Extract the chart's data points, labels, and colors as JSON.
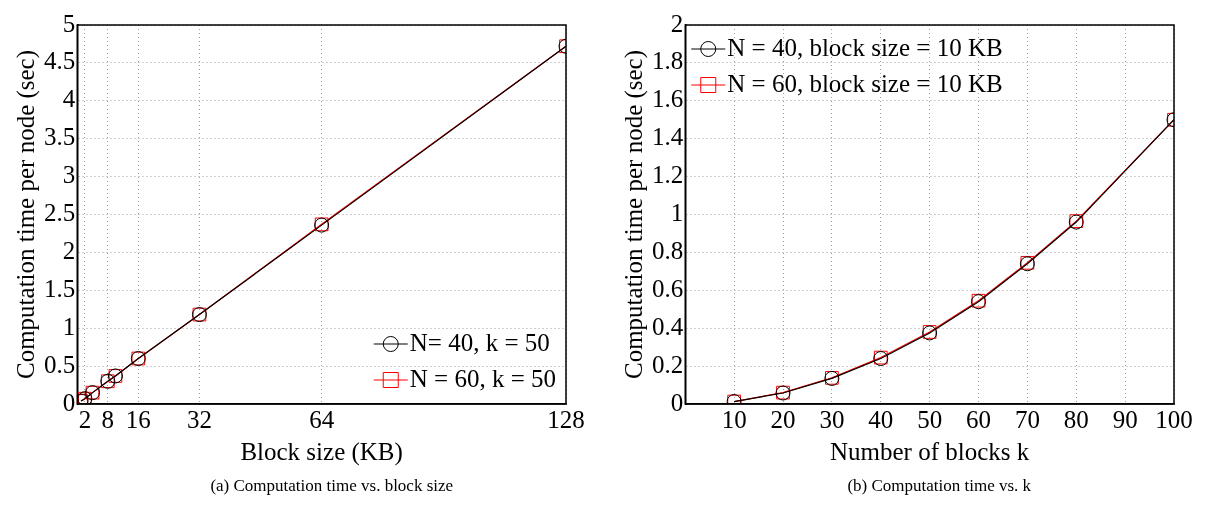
{
  "chart_data": [
    {
      "type": "line",
      "xlabel": "Block size (KB)",
      "ylabel": "Computation time per node (sec)",
      "annotations": [
        "(a) Computation time vs. block size"
      ],
      "x": [
        1,
        2,
        4,
        8,
        10,
        16,
        32,
        64,
        128
      ],
      "xlim": [
        0,
        128
      ],
      "xticks": [
        2,
        8,
        16,
        32,
        64,
        128
      ],
      "ylim": [
        0,
        5
      ],
      "yticks": [
        0,
        0.5,
        1,
        1.5,
        2,
        2.5,
        3,
        3.5,
        4,
        4.5,
        5
      ],
      "grid": true,
      "legend": "bottom right",
      "series": [
        {
          "name": "N= 40, k = 50",
          "color": "#000000",
          "marker": "circle",
          "values": [
            0.04,
            0.07,
            0.15,
            0.3,
            0.37,
            0.6,
            1.18,
            2.36,
            4.72
          ]
        },
        {
          "name": "N = 60, k = 50",
          "color": "#ff0000",
          "marker": "square",
          "values": [
            0.04,
            0.07,
            0.15,
            0.3,
            0.37,
            0.6,
            1.18,
            2.37,
            4.72
          ]
        }
      ]
    },
    {
      "type": "line",
      "xlabel": "Number of blocks k",
      "ylabel": "Computation time per node (sec)",
      "annotations": [
        "(b) Computation time vs. k"
      ],
      "x": [
        10,
        20,
        30,
        40,
        50,
        60,
        70,
        80,
        100
      ],
      "xlim": [
        0,
        100
      ],
      "xticks": [
        10,
        20,
        30,
        40,
        50,
        60,
        70,
        80,
        90,
        100
      ],
      "ylim": [
        0,
        2
      ],
      "yticks": [
        0,
        0.2,
        0.4,
        0.6,
        0.8,
        1,
        1.2,
        1.4,
        1.6,
        1.8,
        2
      ],
      "grid": true,
      "legend": "top left",
      "series": [
        {
          "name": "N = 40, block size = 10 KB",
          "color": "#000000",
          "marker": "circle",
          "values": [
            0.013,
            0.058,
            0.135,
            0.24,
            0.375,
            0.54,
            0.74,
            0.96,
            1.5
          ]
        },
        {
          "name": "N = 60, block size = 10 KB",
          "color": "#ff0000",
          "marker": "square",
          "values": [
            0.013,
            0.06,
            0.138,
            0.245,
            0.38,
            0.545,
            0.745,
            0.965,
            1.5
          ]
        }
      ]
    }
  ]
}
